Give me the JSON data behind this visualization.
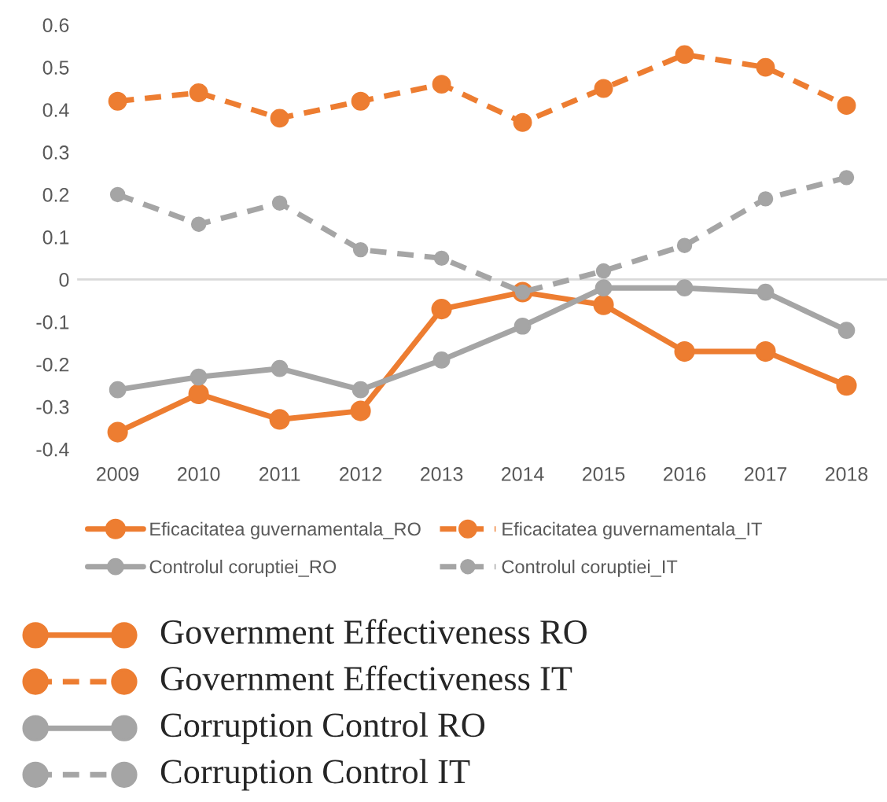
{
  "chart_data": {
    "type": "line",
    "categories": [
      "2009",
      "2010",
      "2011",
      "2012",
      "2013",
      "2014",
      "2015",
      "2016",
      "2017",
      "2018"
    ],
    "series": [
      {
        "name": "Eficacitatea guvernamentala_RO",
        "color": "#ed7d31",
        "line_style": "solid",
        "values": [
          -0.36,
          -0.27,
          -0.33,
          -0.31,
          -0.07,
          -0.03,
          -0.06,
          -0.17,
          -0.17,
          -0.25
        ]
      },
      {
        "name": "Eficacitatea guvernamentala_IT",
        "color": "#ed7d31",
        "line_style": "dashed",
        "values": [
          0.42,
          0.44,
          0.38,
          0.42,
          0.46,
          0.37,
          0.45,
          0.53,
          0.5,
          0.41
        ]
      },
      {
        "name": "Controlul coruptiei_RO",
        "color": "#a5a5a5",
        "line_style": "solid",
        "values": [
          -0.26,
          -0.23,
          -0.21,
          -0.26,
          -0.19,
          -0.11,
          -0.02,
          -0.02,
          -0.03,
          -0.12
        ]
      },
      {
        "name": "Controlul coruptiei_IT",
        "color": "#a5a5a5",
        "line_style": "dashed",
        "values": [
          0.2,
          0.13,
          0.18,
          0.07,
          0.05,
          -0.03,
          0.02,
          0.08,
          0.19,
          0.24
        ]
      }
    ],
    "ylim": [
      -0.4,
      0.6
    ],
    "yticks": [
      -0.4,
      -0.3,
      -0.2,
      -0.1,
      0,
      0.1,
      0.2,
      0.3,
      0.4,
      0.5,
      0.6
    ],
    "ref_lines": [
      {
        "axis": "y",
        "value": 0,
        "color": "#d9d9d9"
      }
    ],
    "marker": "circle",
    "grid": false,
    "legend": "bottom",
    "annotations": [
      "Government Effectiveness RO",
      "Government Effectiveness IT",
      "Corruption Control RO",
      "Corruption Control IT"
    ]
  }
}
